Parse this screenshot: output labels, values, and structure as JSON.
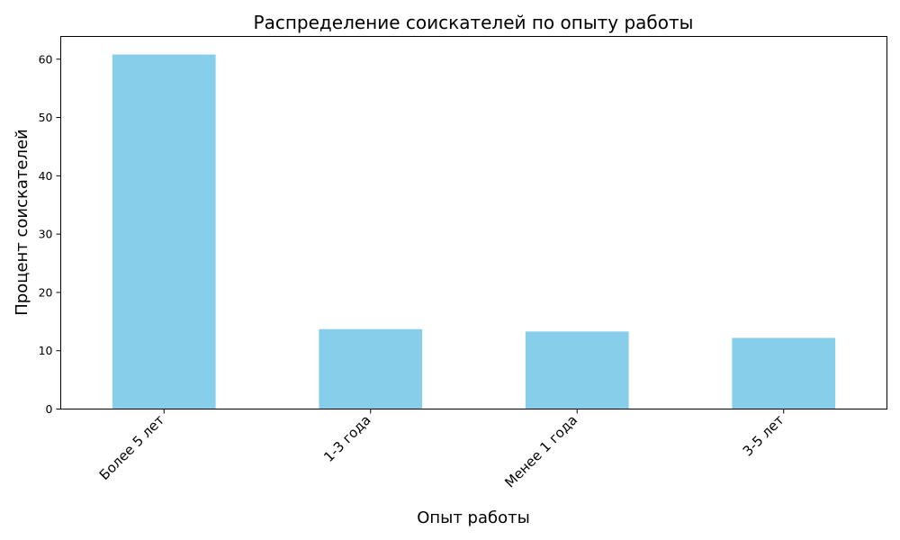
{
  "chart_data": {
    "type": "bar",
    "title": "Распределение соискателей по опыту работы",
    "xlabel": "Опыт работы",
    "ylabel": "Процент соискателей",
    "categories": [
      "Более 5 лет",
      "1-3 года",
      "Менее 1 года",
      "3-5 лет"
    ],
    "values": [
      60.8,
      13.7,
      13.3,
      12.2
    ],
    "ylim": [
      0,
      63.9
    ],
    "yticks": [
      "0",
      "10",
      "20",
      "30",
      "40",
      "50",
      "60"
    ],
    "grid": false,
    "legend": "none",
    "bar_color": "#87CEEB"
  }
}
